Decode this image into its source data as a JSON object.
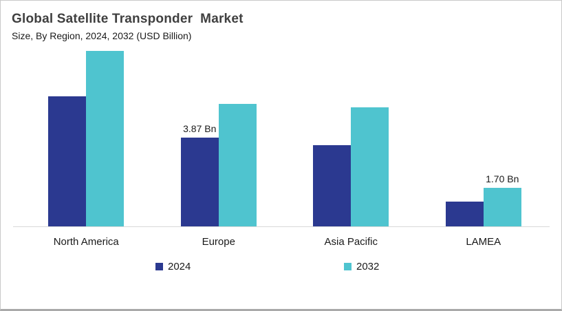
{
  "header": {
    "title": "Global Satellite Transponder  Market",
    "subtitle": "Size, By Region, 2024, 2032 (USD Billion)"
  },
  "colors": {
    "series_2024": "#2B3990",
    "series_2032": "#4FC4CF",
    "axis_line": "#D9D9D9",
    "title_text": "#404040",
    "body_text": "#1A1A1A",
    "background": "#FFFFFF"
  },
  "chart_data": {
    "type": "bar",
    "title": "Global Satellite Transponder Market",
    "subtitle": "Size, By Region, 2024, 2032 (USD Billion)",
    "unit": "USD Billion",
    "categories": [
      "North America",
      "Europe",
      "Asia Pacific",
      "LAMEA"
    ],
    "series": [
      {
        "name": "2024",
        "color": "#2B3990",
        "values": [
          5.66,
          3.87,
          3.55,
          1.1
        ]
      },
      {
        "name": "2032",
        "color": "#4FC4CF",
        "values": [
          7.63,
          5.33,
          5.19,
          1.7
        ]
      }
    ],
    "data_labels": [
      {
        "category": "Europe",
        "series": "2024",
        "text": "3.87 Bn"
      },
      {
        "category": "LAMEA",
        "series": "2032",
        "text": "1.70 Bn"
      }
    ],
    "ylim": [
      0,
      8
    ],
    "grid": false,
    "y_axis_visible": false,
    "legend_position": "bottom"
  },
  "legend": {
    "items": [
      {
        "label": "2024"
      },
      {
        "label": "2032"
      }
    ]
  }
}
